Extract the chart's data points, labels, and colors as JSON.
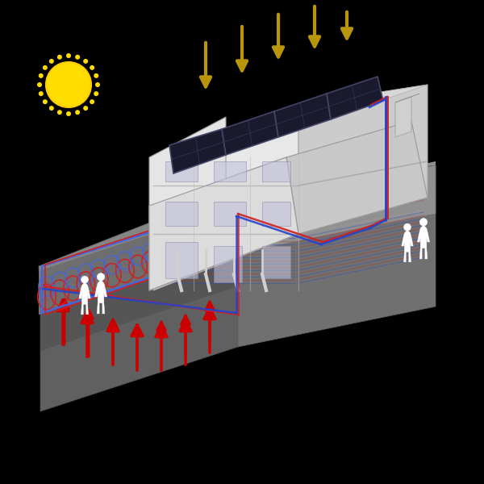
{
  "bg": "#000000",
  "ground_top_light": "#999999",
  "ground_top_dark": "#666666",
  "ground_front_light": "#888888",
  "ground_front_dark": "#444444",
  "ground_right_col": "#555555",
  "sun_color": "#ffdd00",
  "sun_ray_color": "#ffdd00",
  "solar_arrow_color": "#b8960c",
  "geo_arrow_color": "#cc0000",
  "pipe_red": "#cc2222",
  "pipe_blue": "#2244cc",
  "slinky_red": "#cc2222",
  "slinky_blue": "#4466dd",
  "slinky_purple": "#8844aa",
  "house_white": "#f0f0f0",
  "house_gray": "#d0d0d0",
  "house_dark": "#b0b0b0",
  "roof_white": "#e8e8e8",
  "roof_gray": "#c8c8c8",
  "panel_dark": "#1a1a2e",
  "panel_frame": "#444466",
  "chimney_col": "#cccccc",
  "window_col": "#aaaacc",
  "human_col": "#ffffff",
  "floor_red": "#cc2222",
  "floor_blue": "#2244cc"
}
